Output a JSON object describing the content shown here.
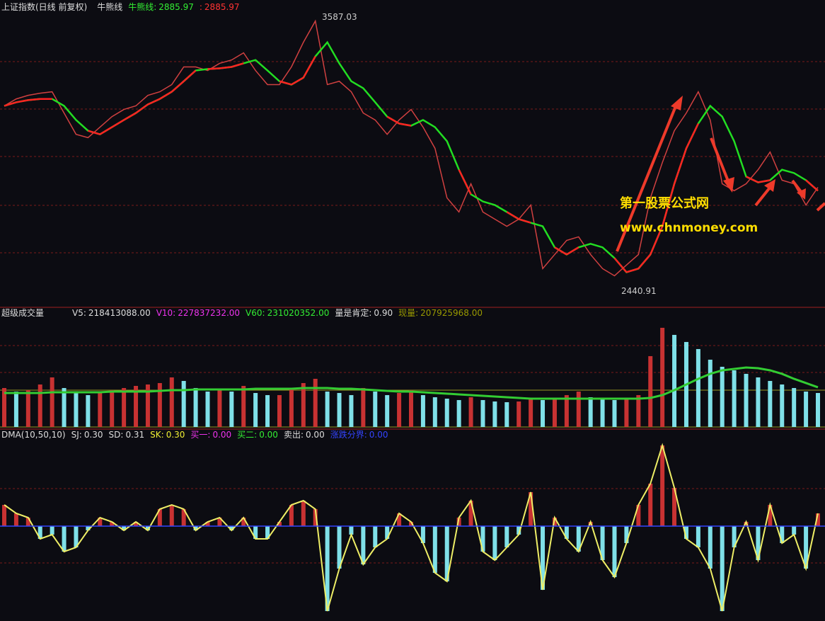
{
  "chart_data": [
    {
      "type": "line",
      "title": "上证指数(日线 前复权)",
      "indicator": "牛熊线",
      "ylim": [
        2380,
        3660
      ],
      "items": [
        {
          "label": "牛熊线:",
          "value": 2885.97,
          "color": "#33ee33"
        },
        {
          "label": ":",
          "value": 2885.97,
          "color": "#ff3333"
        }
      ],
      "high": 3587.03,
      "low": 2440.91,
      "series": [
        {
          "color": "#d04040",
          "values": [
            3217,
            3246,
            3261,
            3270,
            3276,
            3187,
            3098,
            3084,
            3128,
            3172,
            3202,
            3217,
            3261,
            3276,
            3306,
            3380,
            3380,
            3365,
            3395,
            3409,
            3439,
            3365,
            3306,
            3306,
            3380,
            3483,
            3572,
            3306,
            3320,
            3276,
            3187,
            3158,
            3098,
            3158,
            3202,
            3128,
            3039,
            2832,
            2773,
            2891,
            2773,
            2743,
            2713,
            2743,
            2802,
            2536,
            2595,
            2654,
            2669,
            2595,
            2536,
            2506,
            2551,
            2595,
            2832,
            2980,
            3113,
            3187,
            3276,
            3158,
            2891,
            2862,
            2891,
            2950,
            3024,
            2906,
            2891,
            2802,
            2876
          ]
        },
        {
          "color": "#22dd22",
          "up_color": "#ff2222",
          "values": [
            3217,
            3232,
            3241,
            3246,
            3246,
            3217,
            3158,
            3113,
            3098,
            3128,
            3158,
            3187,
            3223,
            3246,
            3276,
            3320,
            3365,
            3371,
            3374,
            3380,
            3395,
            3409,
            3365,
            3320,
            3306,
            3335,
            3424,
            3483,
            3395,
            3320,
            3291,
            3232,
            3172,
            3143,
            3134,
            3158,
            3128,
            3069,
            2950,
            2847,
            2817,
            2802,
            2773,
            2743,
            2728,
            2713,
            2625,
            2595,
            2625,
            2640,
            2625,
            2580,
            2521,
            2536,
            2595,
            2713,
            2891,
            3039,
            3143,
            3217,
            3172,
            3069,
            2921,
            2897,
            2906,
            2950,
            2936,
            2906,
            2862
          ]
        }
      ]
    },
    {
      "type": "bar",
      "title": "超级成交量",
      "ylim": [
        0,
        700000000
      ],
      "items": [
        {
          "label": "V5:",
          "value": {
            "value": 218413088,
            "label": "218413088.00"
          },
          "color": "#dddddd"
        },
        {
          "label": "V10:",
          "value": {
            "value": 227837232,
            "label": "227837232.00"
          },
          "color": "#ee33ee"
        },
        {
          "label": "V60:",
          "value": {
            "value": 231020352,
            "label": "231020352.00"
          },
          "color": "#33ee33"
        },
        {
          "label": "量是肯定:",
          "value": {
            "value": 0.9,
            "label": "0.90"
          },
          "color": "#dddddd"
        },
        {
          "label": "现量:",
          "value": {
            "value": 207925968,
            "label": "207925968.00"
          },
          "color": "#999900"
        }
      ],
      "series": [
        {
          "color": "#c83232",
          "down_color": "#7fe0e8",
          "values": [
            258500000,
            235000000,
            244400000,
            282000000,
            329000000,
            258500000,
            225600000,
            211500000,
            235000000,
            244400000,
            258500000,
            272600000,
            282000000,
            291400000,
            329000000,
            305500000,
            258500000,
            235000000,
            244400000,
            235000000,
            272600000,
            225600000,
            211500000,
            211500000,
            258500000,
            291400000,
            319600000,
            235000000,
            225600000,
            211500000,
            258500000,
            235000000,
            211500000,
            225600000,
            244400000,
            211500000,
            197400000,
            188000000,
            178600000,
            197400000,
            178600000,
            169200000,
            164500000,
            169200000,
            188000000,
            178600000,
            188000000,
            211500000,
            235000000,
            197400000,
            188000000,
            178600000,
            188000000,
            211500000,
            470000000,
            658000000,
            611000000,
            564000000,
            517000000,
            446500000,
            399500000,
            376000000,
            352500000,
            329000000,
            305500000,
            282000000,
            258500000,
            235000000,
            225600000
          ]
        },
        {
          "color": "#33cc33",
          "values": [
            225600000,
            225600000,
            225600000,
            225600000,
            230300000,
            230300000,
            230300000,
            230300000,
            230300000,
            235000000,
            235000000,
            235000000,
            235000000,
            239700000,
            244400000,
            244400000,
            249100000,
            249100000,
            249100000,
            249100000,
            249100000,
            253800000,
            253800000,
            253800000,
            253800000,
            258500000,
            258500000,
            258500000,
            253800000,
            253800000,
            249100000,
            244400000,
            239700000,
            235000000,
            235000000,
            230300000,
            225600000,
            220900000,
            216200000,
            211500000,
            206800000,
            202100000,
            197400000,
            192700000,
            188000000,
            188000000,
            188000000,
            188000000,
            188000000,
            188000000,
            188000000,
            188000000,
            188000000,
            188000000,
            192700000,
            211500000,
            244400000,
            282000000,
            319600000,
            352500000,
            376000000,
            385400000,
            394800000,
            390100000,
            376000000,
            352500000,
            319600000,
            291400000,
            263200000
          ]
        }
      ]
    },
    {
      "type": "area",
      "title": "DMA(10,50,10)",
      "ylim": [
        -2.2,
        2.2
      ],
      "items": [
        {
          "label": "SJ:",
          "value": {
            "value": 0.3,
            "label": "0.30"
          },
          "color": "#dddddd"
        },
        {
          "label": "SD:",
          "value": {
            "value": 0.31,
            "label": "0.31"
          },
          "color": "#dddddd"
        },
        {
          "label": "SK:",
          "value": {
            "value": 0.3,
            "label": "0.30"
          },
          "color": "#eeee33"
        },
        {
          "label": "买一:",
          "value": {
            "value": 0,
            "label": "0.00"
          },
          "color": "#ee33ee"
        },
        {
          "label": "买二:",
          "value": {
            "value": 0,
            "label": "0.00"
          },
          "color": "#33ee33"
        },
        {
          "label": "卖出:",
          "value": {
            "value": 0,
            "label": "0.00"
          },
          "color": "#dddddd"
        },
        {
          "label": "涨跌分界:",
          "value": {
            "value": 0,
            "label": "0.00"
          },
          "color": "#3344ff"
        }
      ],
      "series": [
        {
          "color": "#c83232",
          "down_color": "#7fe0e8",
          "line_color": "#eeee66",
          "values": [
            0.5,
            0.3,
            0.2,
            -0.3,
            -0.2,
            -0.6,
            -0.5,
            -0.1,
            0.2,
            0.1,
            -0.1,
            0.1,
            -0.1,
            0.4,
            0.5,
            0.4,
            -0.1,
            0.1,
            0.2,
            -0.1,
            0.2,
            -0.3,
            -0.3,
            0.1,
            0.5,
            0.6,
            0.4,
            -2.0,
            -1.0,
            -0.2,
            -0.9,
            -0.5,
            -0.3,
            0.3,
            0.1,
            -0.4,
            -1.1,
            -1.3,
            0.2,
            0.6,
            -0.6,
            -0.8,
            -0.5,
            -0.2,
            0.8,
            -1.5,
            0.2,
            -0.3,
            -0.6,
            0.1,
            -0.8,
            -1.2,
            -0.4,
            0.5,
            1.0,
            1.9,
            0.9,
            -0.3,
            -0.5,
            -1.0,
            -2.0,
            -0.5,
            0.1,
            -0.8,
            0.5,
            -0.4,
            -0.2,
            -1.0,
            0.3
          ]
        }
      ]
    }
  ],
  "watermark": [
    "第一股票公式网",
    "www.chnmoney.com"
  ]
}
